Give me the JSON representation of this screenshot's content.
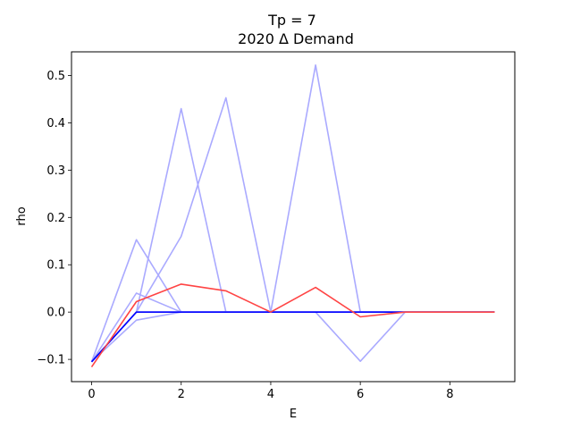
{
  "chart_data": {
    "type": "line",
    "title": "Tp = 7",
    "subtitle": "2020 Δ Demand",
    "xlabel": "E",
    "ylabel": "rho",
    "xlim": [
      -0.45,
      9.45
    ],
    "ylim": [
      -0.147,
      0.55
    ],
    "xticks": [
      0,
      2,
      4,
      6,
      8
    ],
    "yticks": [
      -0.1,
      0.0,
      0.1,
      0.2,
      0.3,
      0.4,
      0.5
    ],
    "ytick_labels": [
      "−0.1",
      "0.0",
      "0.1",
      "0.2",
      "0.3",
      "0.4",
      "0.5"
    ],
    "grid": false,
    "series": [
      {
        "color": "#aaaaff",
        "x": [
          0,
          1,
          2,
          3,
          4,
          5,
          6,
          7,
          8,
          9
        ],
        "y": [
          -0.105,
          0.153,
          0.0,
          0.0,
          0.0,
          0.0,
          0.0,
          0.0,
          0.0,
          0.0
        ]
      },
      {
        "color": "#aaaaff",
        "x": [
          0,
          1,
          2,
          3,
          4,
          5,
          6,
          7,
          8,
          9
        ],
        "y": [
          -0.105,
          0.04,
          0.0,
          0.0,
          0.0,
          0.0,
          0.0,
          0.0,
          0.0,
          0.0
        ]
      },
      {
        "color": "#aaaaff",
        "x": [
          0,
          1,
          2,
          3,
          4,
          5,
          6,
          7,
          8,
          9
        ],
        "y": [
          -0.105,
          -0.017,
          0.0,
          0.0,
          0.0,
          0.0,
          0.0,
          0.0,
          0.0,
          0.0
        ]
      },
      {
        "color": "#aaaaff",
        "x": [
          0,
          1,
          2,
          3,
          4,
          5,
          6,
          7,
          8,
          9
        ],
        "y": [
          -0.105,
          0.0,
          0.43,
          0.0,
          0.0,
          0.0,
          0.0,
          0.0,
          0.0,
          0.0
        ]
      },
      {
        "color": "#aaaaff",
        "x": [
          0,
          1,
          2,
          3,
          4,
          5,
          6,
          7,
          8,
          9
        ],
        "y": [
          -0.105,
          0.0,
          0.16,
          0.453,
          0.0,
          0.0,
          0.0,
          0.0,
          0.0,
          0.0
        ]
      },
      {
        "color": "#aaaaff",
        "x": [
          0,
          1,
          2,
          3,
          4,
          5,
          6,
          7,
          8,
          9
        ],
        "y": [
          -0.105,
          0.0,
          0.0,
          0.0,
          0.0,
          0.522,
          0.0,
          0.0,
          0.0,
          0.0
        ]
      },
      {
        "color": "#aaaaff",
        "x": [
          0,
          1,
          2,
          3,
          4,
          5,
          6,
          7,
          8,
          9
        ],
        "y": [
          -0.105,
          0.0,
          0.0,
          0.0,
          0.0,
          0.0,
          -0.104,
          0.0,
          0.0,
          0.0
        ]
      },
      {
        "color": "#0000ff",
        "x": [
          0,
          1,
          2,
          3,
          4,
          5,
          6,
          7,
          8,
          9
        ],
        "y": [
          -0.105,
          0.0,
          0.0,
          0.0,
          0.0,
          0.0,
          0.0,
          0.0,
          0.0,
          0.0
        ]
      },
      {
        "color": "#ff4444",
        "x": [
          0,
          1,
          2,
          3,
          4,
          5,
          6,
          7,
          8,
          9
        ],
        "y": [
          -0.116,
          0.022,
          0.059,
          0.045,
          0.0,
          0.052,
          -0.01,
          0.0,
          0.0,
          0.0
        ]
      }
    ]
  }
}
